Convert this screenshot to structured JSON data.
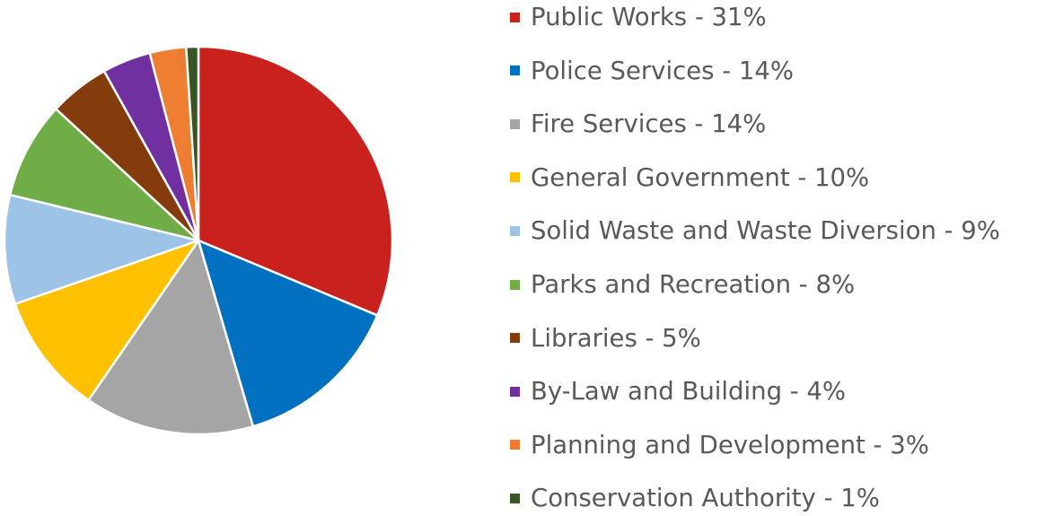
{
  "chart_data": {
    "type": "pie",
    "title": "",
    "start_angle_deg": 0,
    "direction": "clockwise",
    "legend_position": "right",
    "slices": [
      {
        "label": "Public Works",
        "value": 31,
        "color": "#c9211e",
        "legend_text": "Public Works - 31%"
      },
      {
        "label": "Police Services",
        "value": 14,
        "color": "#0070c0",
        "legend_text": "Police Services - 14%"
      },
      {
        "label": "Fire Services",
        "value": 14,
        "color": "#a5a5a5",
        "legend_text": "Fire Services - 14%"
      },
      {
        "label": "General Government",
        "value": 10,
        "color": "#ffc000",
        "legend_text": "General Government - 10%"
      },
      {
        "label": "Solid Waste and Waste Diversion",
        "value": 9,
        "color": "#9dc3e6",
        "legend_text": "Solid Waste and Waste Diversion - 9%"
      },
      {
        "label": "Parks and Recreation",
        "value": 8,
        "color": "#70ad47",
        "legend_text": "Parks and Recreation - 8%"
      },
      {
        "label": "Libraries",
        "value": 5,
        "color": "#843c0c",
        "legend_text": "Libraries - 5%"
      },
      {
        "label": "By-Law and Building",
        "value": 4,
        "color": "#7030a0",
        "legend_text": "By-Law and Building - 4%"
      },
      {
        "label": "Planning and Development",
        "value": 3,
        "color": "#ed7d31",
        "legend_text": "Planning and Development - 3%"
      },
      {
        "label": "Conservation Authority",
        "value": 1,
        "color": "#375623",
        "legend_text": "Conservation Authority - 1%"
      }
    ]
  }
}
